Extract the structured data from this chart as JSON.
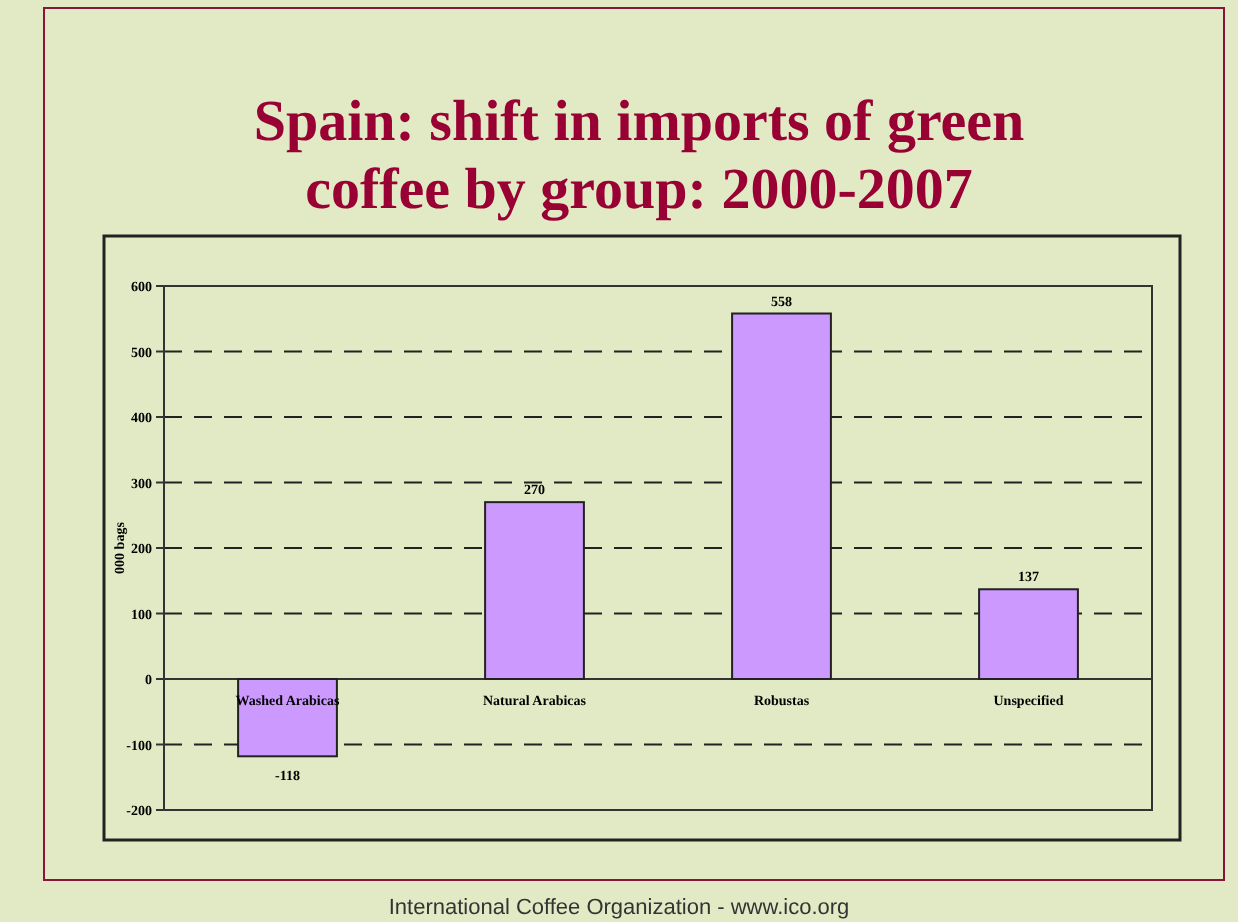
{
  "chart_data": {
    "type": "bar",
    "title": "Spain: shift in imports of green coffee by group: 2000-2007",
    "ylabel": "000 bags",
    "categories": [
      "Washed Arabicas",
      "Natural Arabicas",
      "Robustas",
      "Unspecified"
    ],
    "values": [
      -118,
      270,
      558,
      137
    ],
    "color": "#cc99ff",
    "ylim": [
      -200,
      600
    ],
    "yticks": [
      -200,
      -100,
      0,
      100,
      200,
      300,
      400,
      500,
      600
    ],
    "grid": "y",
    "data_labels": true,
    "annotations": [
      "International Coffee Organization  -  www.ico.org"
    ]
  }
}
